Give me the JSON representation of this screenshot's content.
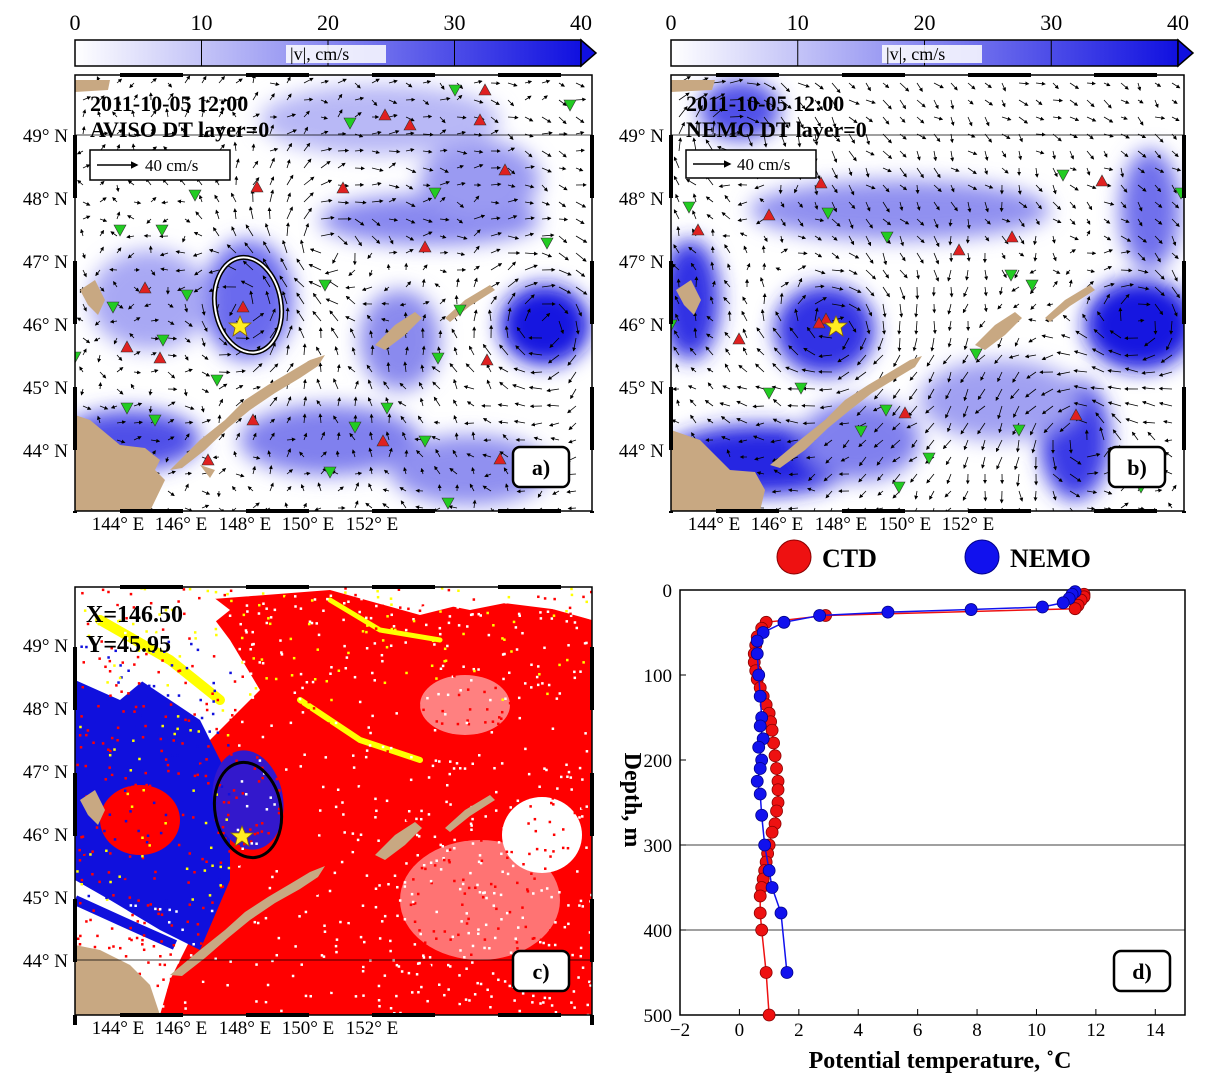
{
  "colorbar": {
    "label": "|v|, cm/s",
    "ticks": [
      "0",
      "10",
      "20",
      "30",
      "40"
    ],
    "color_low": "#ffffff",
    "color_high": "#1010e0"
  },
  "axes": {
    "lat_ticks": [
      "49° N",
      "48° N",
      "47° N",
      "46° N",
      "45° N",
      "44° N"
    ],
    "lon_ticks": [
      "144° E",
      "146° E",
      "148° E",
      "150° E",
      "152° E"
    ]
  },
  "colors": {
    "land": "#c8a882",
    "ctd": "#ee1111",
    "nemo": "#1111ee",
    "star": "#ffee22",
    "up_marker": "#e02020",
    "down_marker": "#22cc22",
    "lagrangian_red": "#ff0000",
    "lagrangian_blue": "#1010dd",
    "lagrangian_yellow": "#ffff00"
  },
  "panel_a": {
    "date": "2011-10-05 12:00",
    "source": "AVISO DT layer=0",
    "scale_label": "40 cm/s",
    "panel_label": "a)"
  },
  "panel_b": {
    "date": "2011-10-05 12:00",
    "source": "NEMO DT layer=0",
    "scale_label": "40 cm/s",
    "panel_label": "b)"
  },
  "panel_c": {
    "x_label": "X=146.50",
    "y_label": "Y=45.95",
    "panel_label": "c)"
  },
  "panel_d": {
    "panel_label": "d)",
    "legend": [
      "CTD",
      "NEMO"
    ]
  },
  "chart_data": {
    "type": "line",
    "title": "",
    "xlabel": "Potential temperature, ˚C",
    "ylabel": "Depth, m",
    "xlim": [
      -2,
      15
    ],
    "ylim": [
      500,
      0
    ],
    "x_ticks": [
      "−2",
      "0",
      "2",
      "4",
      "6",
      "8",
      "10",
      "12",
      "14"
    ],
    "y_ticks": [
      "0",
      "100",
      "200",
      "300",
      "400",
      "500"
    ],
    "legend_position": "top",
    "series": [
      {
        "name": "CTD",
        "color": "#ee1111",
        "temperature": [
          11.6,
          11.6,
          11.5,
          11.4,
          11.3,
          2.9,
          0.9,
          0.75,
          0.6,
          0.55,
          0.5,
          0.5,
          0.55,
          0.6,
          0.7,
          0.8,
          0.9,
          1.0,
          1.05,
          1.1,
          1.15,
          1.2,
          1.25,
          1.3,
          1.3,
          1.3,
          1.25,
          1.2,
          1.1,
          1.0,
          0.95,
          0.9,
          0.85,
          0.8,
          0.75,
          0.7,
          0.7,
          0.75,
          0.9,
          1.0
        ],
        "depth": [
          5,
          8,
          12,
          18,
          22,
          30,
          38,
          45,
          55,
          65,
          75,
          85,
          95,
          105,
          115,
          125,
          135,
          145,
          155,
          165,
          180,
          195,
          210,
          225,
          235,
          250,
          260,
          275,
          285,
          300,
          310,
          320,
          330,
          340,
          350,
          360,
          380,
          400,
          450,
          500
        ]
      },
      {
        "name": "NEMO",
        "color": "#1111ee",
        "temperature": [
          11.3,
          11.2,
          11.1,
          10.9,
          10.2,
          7.8,
          5.0,
          2.7,
          1.5,
          0.8,
          0.6,
          0.6,
          0.65,
          0.7,
          0.75,
          0.7,
          0.8,
          0.65,
          0.75,
          0.7,
          0.6,
          0.7,
          0.75,
          0.85,
          1.0,
          1.1,
          1.4,
          1.6
        ],
        "depth": [
          2,
          5,
          10,
          15,
          20,
          23,
          26,
          30,
          38,
          50,
          60,
          75,
          100,
          125,
          150,
          160,
          175,
          185,
          200,
          210,
          225,
          240,
          265,
          300,
          330,
          350,
          380,
          450
        ]
      }
    ]
  }
}
